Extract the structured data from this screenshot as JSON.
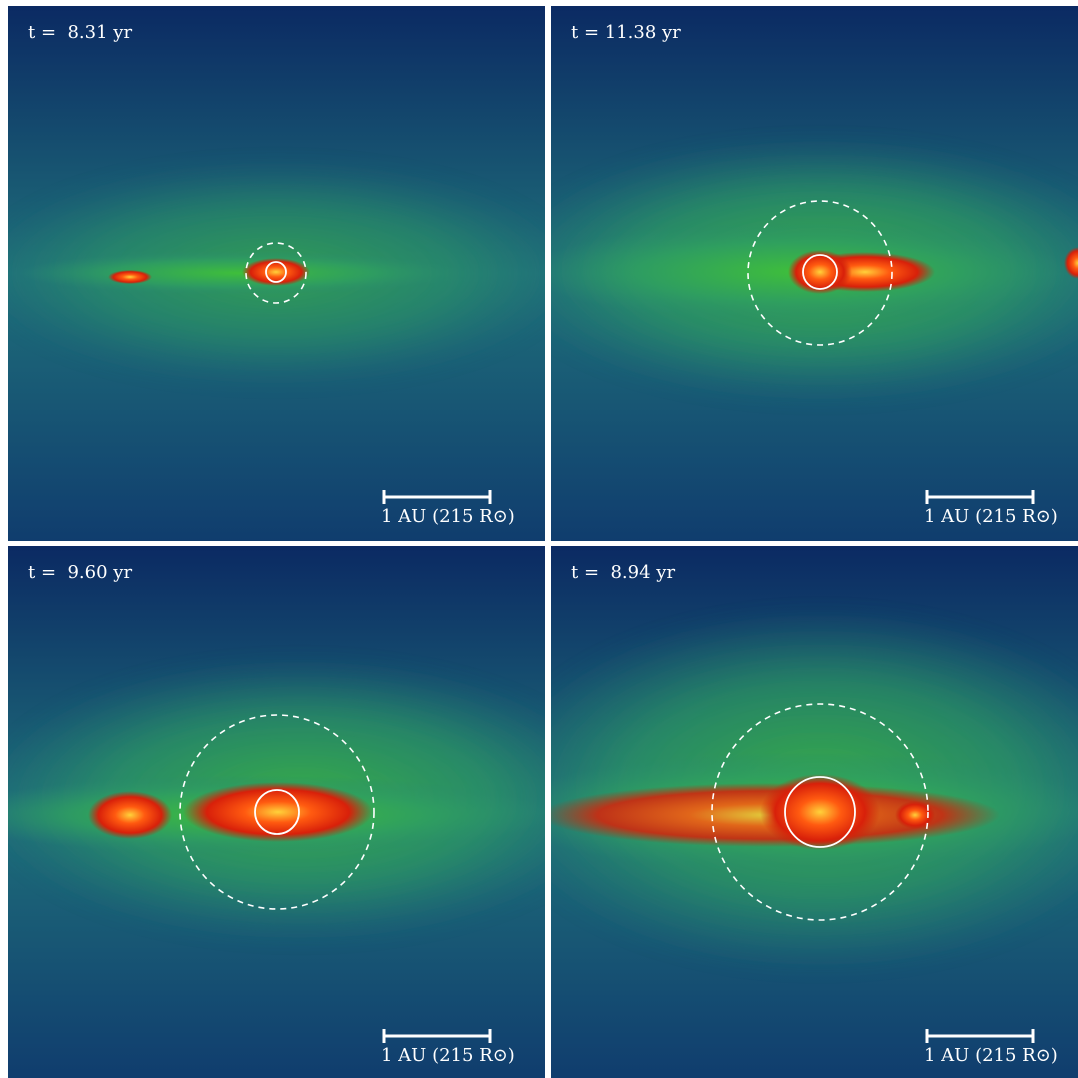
{
  "panels": [
    {
      "time": "t =  8.31 yr",
      "scale": "1 AU (215 R⊙)"
    },
    {
      "time": "t = 11.38 yr",
      "scale": "1 AU (215 R⊙)"
    },
    {
      "time": "t =  9.60 yr",
      "scale": "1 AU (215 R⊙)"
    },
    {
      "time": "t =  8.94 yr",
      "scale": "1 AU (215 R⊙)"
    }
  ]
}
